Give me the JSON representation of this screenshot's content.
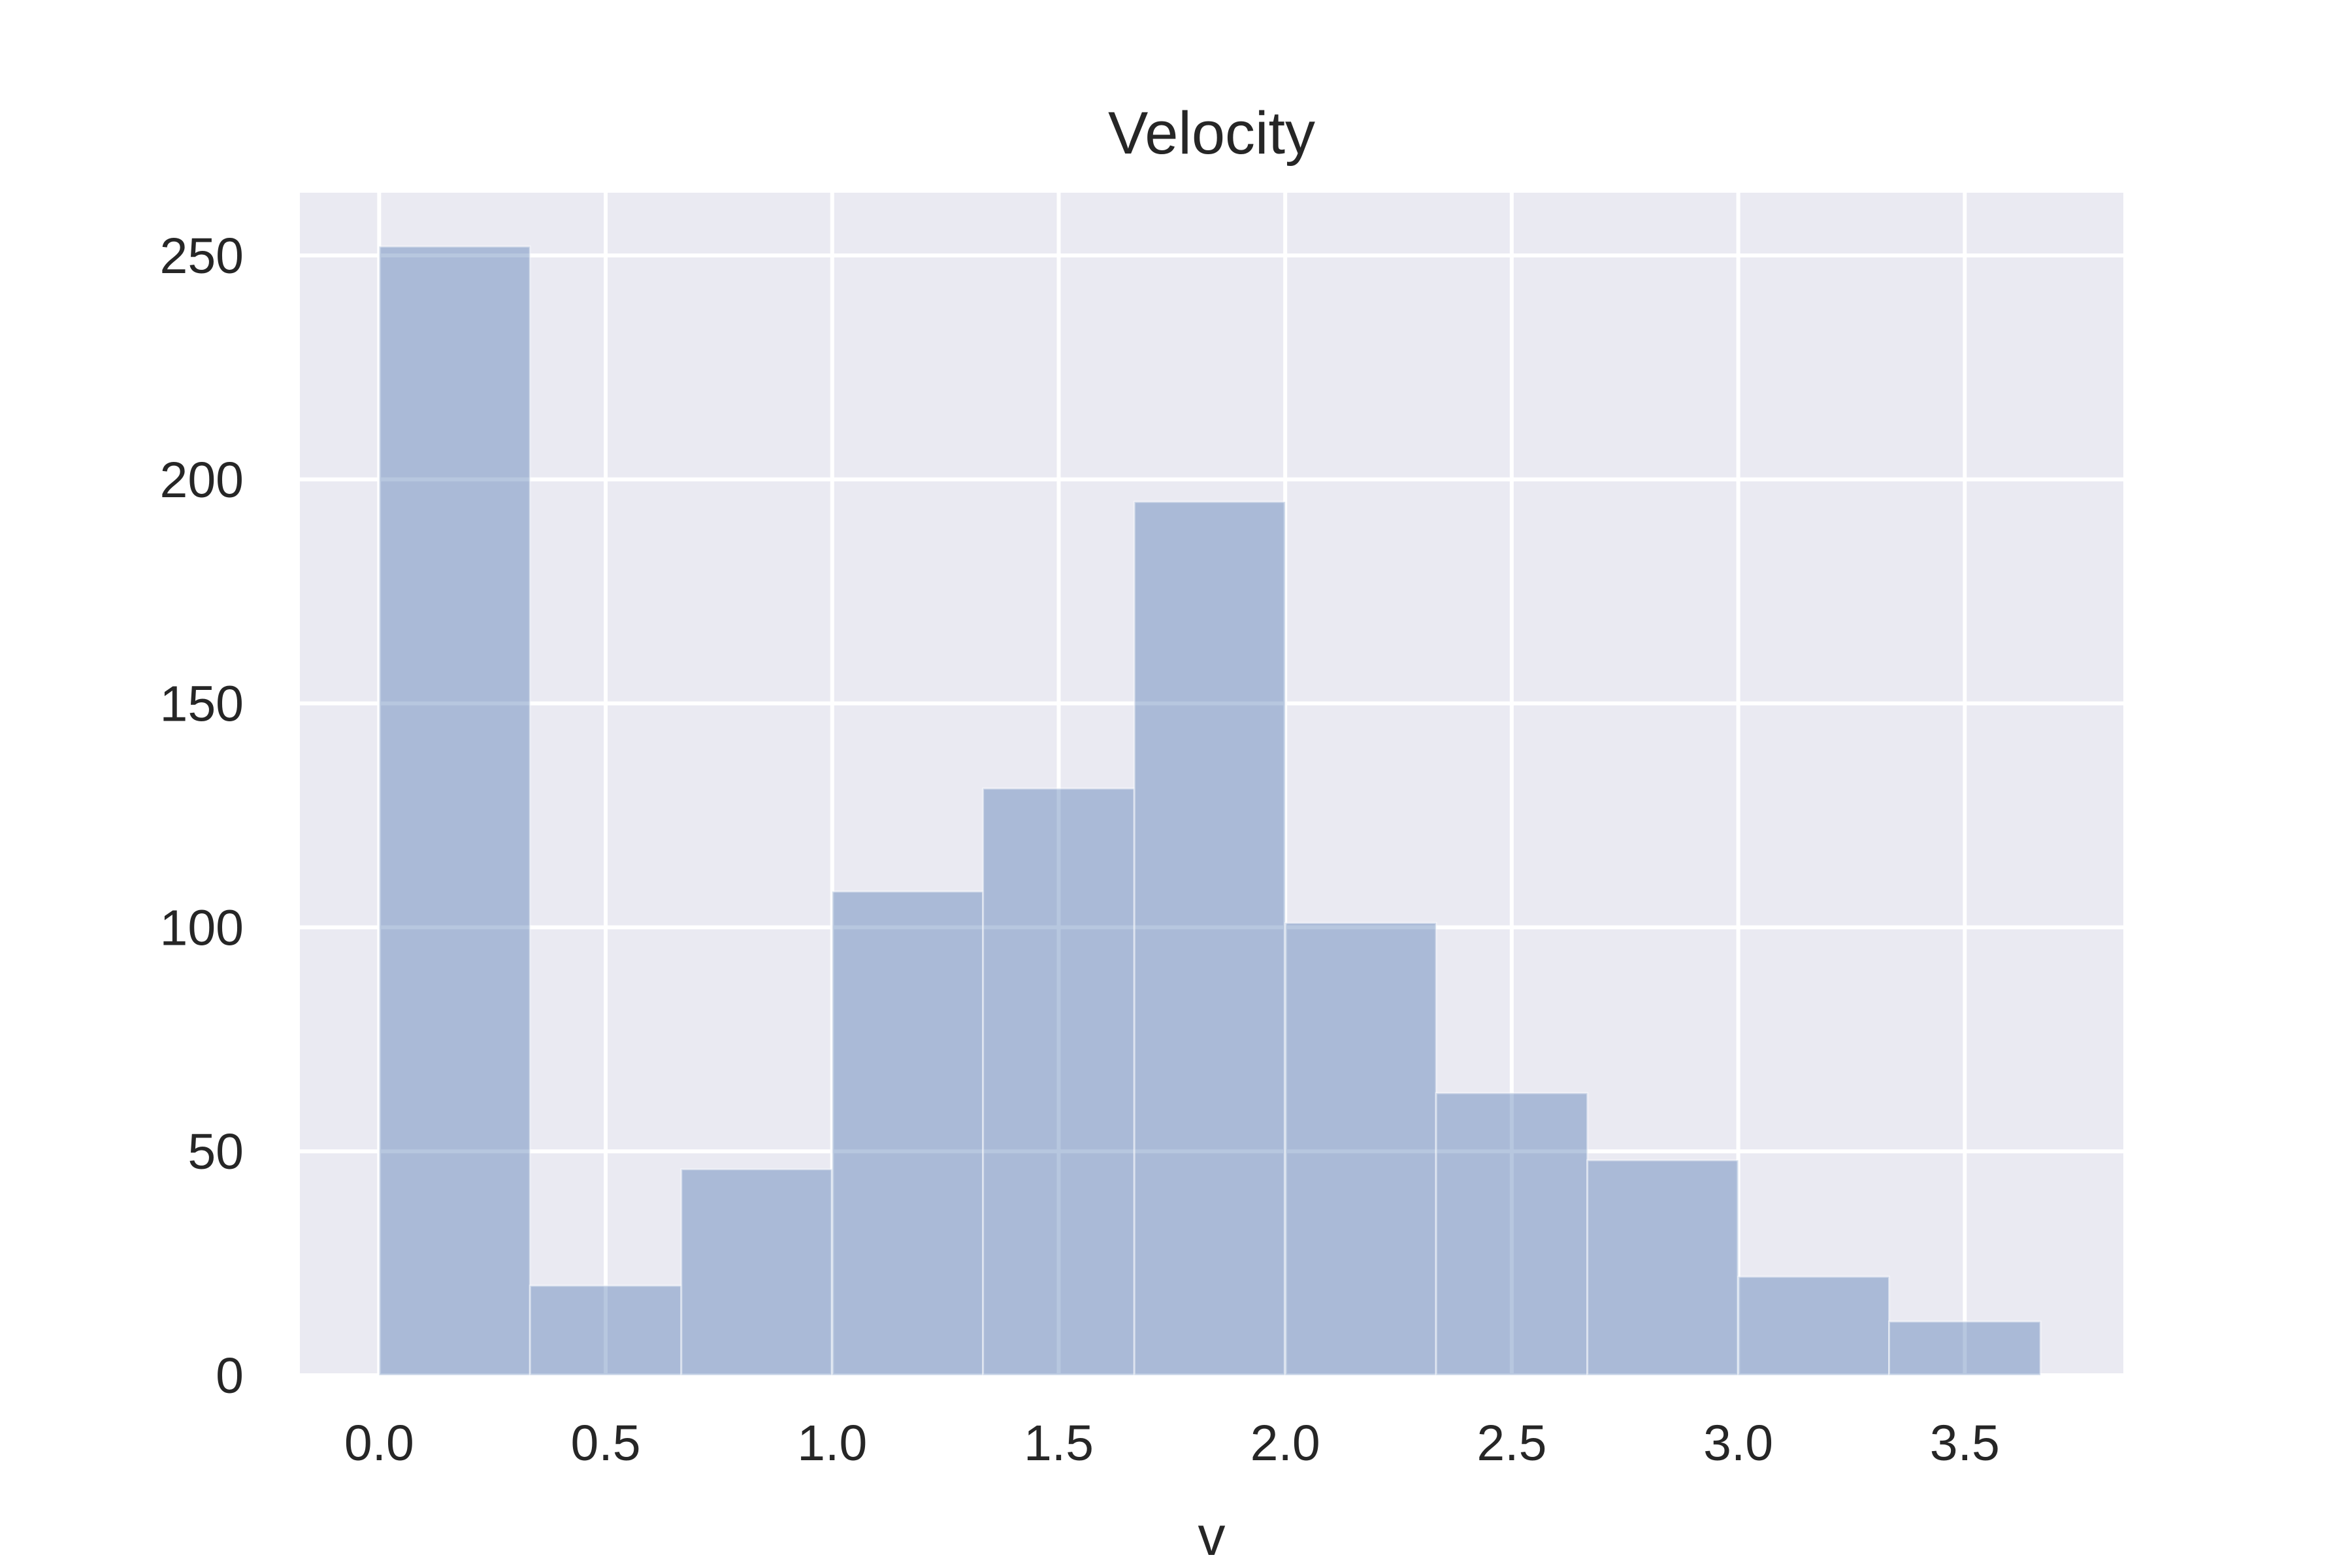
{
  "colors": {
    "background": "#ffffff",
    "plot_background": "#eaeaf2",
    "grid": "#ffffff",
    "bar_fill": "#4c72b0",
    "bar_opacity": 0.4,
    "text": "#262626"
  },
  "chart_data": {
    "type": "bar",
    "title": "Velocity",
    "xlabel": "v",
    "ylabel": "",
    "grid": true,
    "xlim": [
      -0.175,
      3.85
    ],
    "ylim": [
      0,
      264
    ],
    "xticks": [
      0.0,
      0.5,
      1.0,
      1.5,
      2.0,
      2.5,
      3.0,
      3.5
    ],
    "xtick_labels": [
      "0.0",
      "0.5",
      "1.0",
      "1.5",
      "2.0",
      "2.5",
      "3.0",
      "3.5"
    ],
    "yticks": [
      0,
      50,
      100,
      150,
      200,
      250
    ],
    "ytick_labels": [
      "0",
      "50",
      "100",
      "150",
      "200",
      "250"
    ],
    "bin_edges": [
      0.0,
      0.333,
      0.667,
      1.0,
      1.333,
      1.667,
      2.0,
      2.333,
      2.667,
      3.0,
      3.333,
      3.667
    ],
    "values": [
      252,
      20,
      46,
      108,
      131,
      195,
      101,
      63,
      48,
      22,
      12
    ]
  }
}
